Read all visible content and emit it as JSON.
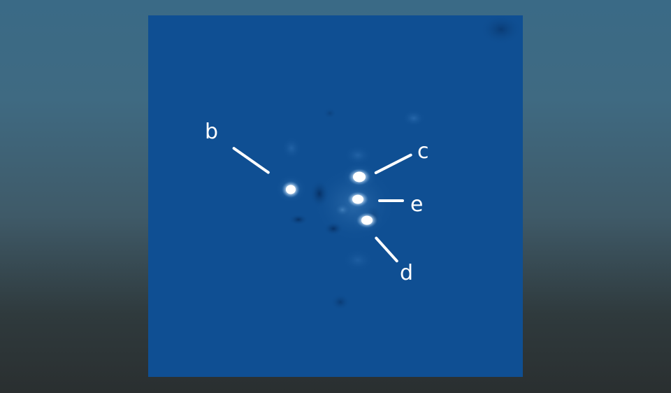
{
  "image": {
    "background_color": "#0f4f93",
    "page_gradient": [
      "#3a6a86",
      "#3f6a82",
      "#3f5a68",
      "#2f3a3d",
      "#2a2f30"
    ]
  },
  "labels": {
    "b": "b",
    "c": "c",
    "d": "d",
    "e": "e"
  }
}
